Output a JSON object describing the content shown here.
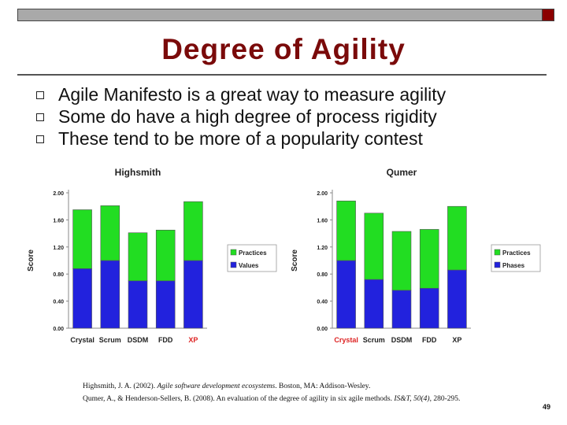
{
  "slide": {
    "title": "Degree of Agility",
    "bullets": [
      "Agile Manifesto is a great way to measure agility",
      "Some do have a high degree of process rigidity",
      "These tend to be more of a popularity contest"
    ],
    "references": [
      {
        "pre": "Highsmith, J. A. (2002). ",
        "ital": "Agile software development ecosystems",
        "post": ". Boston, MA: Addison-Wesley."
      },
      {
        "pre": "Qumer, A., & Henderson-Sellers, B. (2008). An evaluation of the degree of agility in six agile methods. ",
        "ital": "IS&T, 50(4)",
        "post": ", 280-295."
      }
    ],
    "page_number": "49"
  },
  "colors": {
    "title": "#7a0a0a",
    "bar_top": "#22dd22",
    "bar_bottom": "#2222dd",
    "highlight": "#dd2222"
  },
  "chart_data": [
    {
      "type": "bar",
      "stacked": true,
      "title": "Highsmith",
      "ylabel": "Score",
      "xlabel": "",
      "ylim": [
        0,
        2.0
      ],
      "yticks": [
        "0.00",
        "0.40",
        "0.80",
        "1.20",
        "1.60",
        "2.00"
      ],
      "categories": [
        "Crystal",
        "Scrum",
        "DSDM",
        "FDD",
        "XP"
      ],
      "highlight_category": "XP",
      "legend_position": "right",
      "grid": false,
      "series": [
        {
          "name": "Values",
          "color": "#2222dd",
          "values": [
            0.88,
            1.0,
            0.7,
            0.7,
            1.0
          ]
        },
        {
          "name": "Practices",
          "color": "#22dd22",
          "values": [
            0.87,
            0.81,
            0.71,
            0.75,
            0.87
          ]
        }
      ]
    },
    {
      "type": "bar",
      "stacked": true,
      "title": "Qumer",
      "ylabel": "Score",
      "xlabel": "",
      "ylim": [
        0,
        2.0
      ],
      "yticks": [
        "0.00",
        "0.40",
        "0.80",
        "1.20",
        "1.60",
        "2.00"
      ],
      "categories": [
        "Crystal",
        "Scrum",
        "DSDM",
        "FDD",
        "XP"
      ],
      "highlight_category": "Crystal",
      "legend_position": "right",
      "grid": false,
      "series": [
        {
          "name": "Phases",
          "color": "#2222dd",
          "values": [
            1.0,
            0.72,
            0.56,
            0.59,
            0.86
          ]
        },
        {
          "name": "Practices",
          "color": "#22dd22",
          "values": [
            0.88,
            0.98,
            0.87,
            0.87,
            0.94
          ]
        }
      ]
    }
  ]
}
